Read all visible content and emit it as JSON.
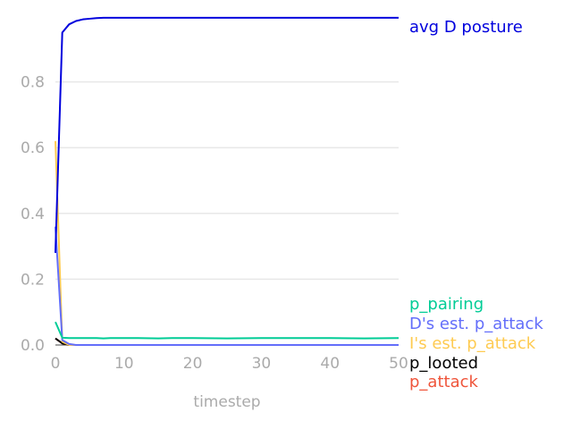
{
  "chart_data": {
    "type": "line",
    "xlabel": "timestep",
    "ylabel": "",
    "xlim": [
      0,
      50
    ],
    "ylim": [
      0,
      1.0
    ],
    "xticks": [
      0,
      10,
      20,
      30,
      40,
      50
    ],
    "yticks": [
      0.0,
      0.2,
      0.4,
      0.6,
      0.8
    ],
    "xtick_labels": [
      "0",
      "10",
      "20",
      "30",
      "40",
      "50"
    ],
    "ytick_labels": [
      "0.0",
      "0.2",
      "0.4",
      "0.6",
      "0.8"
    ],
    "grid": "horizontal",
    "legend": "inline labels at right",
    "series": [
      {
        "name": "avg D posture",
        "color": "#0000dd",
        "x": [
          0,
          1,
          2,
          3,
          4,
          5,
          6,
          7,
          8,
          50
        ],
        "y": [
          0.28,
          0.95,
          0.975,
          0.985,
          0.99,
          0.992,
          0.994,
          0.995,
          0.995,
          0.995
        ]
      },
      {
        "name": "p_pairing",
        "color": "#00cc96",
        "x": [
          0,
          1,
          2,
          3,
          4,
          5,
          6,
          7,
          8,
          10,
          12,
          15,
          17,
          20,
          25,
          30,
          35,
          40,
          45,
          50
        ],
        "y": [
          0.07,
          0.022,
          0.021,
          0.021,
          0.021,
          0.021,
          0.021,
          0.02,
          0.021,
          0.021,
          0.021,
          0.02,
          0.021,
          0.021,
          0.02,
          0.021,
          0.021,
          0.021,
          0.02,
          0.021
        ]
      },
      {
        "name": "D's est. p_attack",
        "color": "#636efa",
        "x": [
          0,
          1,
          2,
          3,
          50
        ],
        "y": [
          0.36,
          0.015,
          0.003,
          0.0,
          0.0
        ]
      },
      {
        "name": "I's est. p_attack",
        "color": "#fecb52",
        "x": [
          0,
          1,
          2,
          50
        ],
        "y": [
          0.62,
          0.01,
          0.0,
          0.0
        ]
      },
      {
        "name": "p_looted",
        "color": "#000000",
        "x": [
          0,
          1,
          2,
          50
        ],
        "y": [
          0.02,
          0.005,
          0.0,
          0.0
        ]
      },
      {
        "name": "p_attack",
        "color": "#ef553b",
        "x": [
          0,
          1,
          2,
          50
        ],
        "y": [
          0.02,
          0.005,
          0.0,
          0.0
        ]
      }
    ]
  }
}
